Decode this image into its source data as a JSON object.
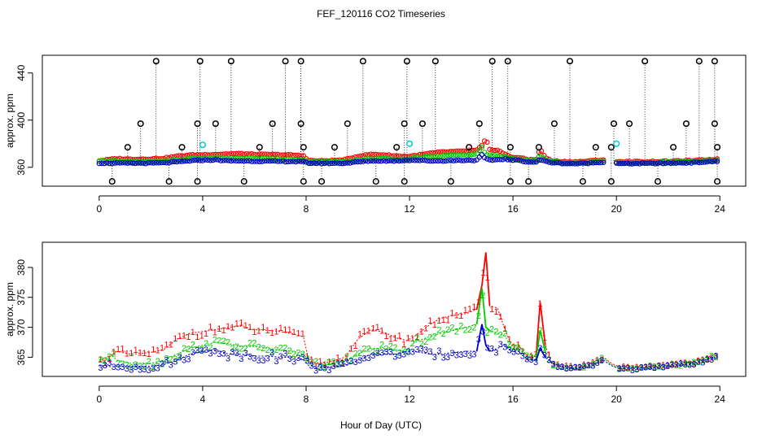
{
  "title": "FEF_120116  CO2 Timeseries",
  "xlabel": "Hour of Day (UTC)",
  "colors": {
    "series1": "#ff0000",
    "series2": "#00cc00",
    "series3": "#0000cc",
    "spike": "#000000",
    "cyan": "#00cccc"
  },
  "chart_data": [
    {
      "type": "scatter",
      "panel": "top",
      "ylabel": "approx. ppm",
      "xlim": [
        -2.2,
        25
      ],
      "ylim": [
        344,
        455
      ],
      "x_ticks": [
        0,
        4,
        8,
        12,
        16,
        20,
        24
      ],
      "y_ticks": [
        360,
        400,
        440
      ],
      "y_tick_labels": [
        "360",
        "400",
        "440"
      ],
      "spikes_high": [
        {
          "x": 2.2,
          "y": 450
        },
        {
          "x": 3.9,
          "y": 450
        },
        {
          "x": 5.1,
          "y": 450
        },
        {
          "x": 7.2,
          "y": 450
        },
        {
          "x": 7.8,
          "y": 450
        },
        {
          "x": 10.2,
          "y": 450
        },
        {
          "x": 11.9,
          "y": 450
        },
        {
          "x": 13.0,
          "y": 450
        },
        {
          "x": 15.2,
          "y": 450
        },
        {
          "x": 15.8,
          "y": 450
        },
        {
          "x": 18.2,
          "y": 450
        },
        {
          "x": 21.1,
          "y": 450
        },
        {
          "x": 23.2,
          "y": 450
        },
        {
          "x": 23.8,
          "y": 450
        }
      ],
      "spikes_mid": [
        {
          "x": 1.6,
          "y": 397
        },
        {
          "x": 3.8,
          "y": 397
        },
        {
          "x": 4.5,
          "y": 397
        },
        {
          "x": 6.7,
          "y": 397
        },
        {
          "x": 7.8,
          "y": 397
        },
        {
          "x": 9.6,
          "y": 397
        },
        {
          "x": 11.8,
          "y": 397
        },
        {
          "x": 12.5,
          "y": 397
        },
        {
          "x": 14.7,
          "y": 397
        },
        {
          "x": 17.6,
          "y": 397
        },
        {
          "x": 19.9,
          "y": 397
        },
        {
          "x": 20.5,
          "y": 397
        },
        {
          "x": 22.7,
          "y": 397
        },
        {
          "x": 23.8,
          "y": 397
        }
      ],
      "spikes_low": [
        {
          "x": 1.1,
          "y": 377
        },
        {
          "x": 3.2,
          "y": 377
        },
        {
          "x": 6.2,
          "y": 377
        },
        {
          "x": 7.9,
          "y": 377
        },
        {
          "x": 9.1,
          "y": 377
        },
        {
          "x": 11.5,
          "y": 377
        },
        {
          "x": 14.3,
          "y": 377
        },
        {
          "x": 15.9,
          "y": 377
        },
        {
          "x": 17.0,
          "y": 377
        },
        {
          "x": 19.2,
          "y": 377
        },
        {
          "x": 19.8,
          "y": 377
        },
        {
          "x": 22.2,
          "y": 377
        },
        {
          "x": 23.9,
          "y": 377
        }
      ],
      "spikes_bottom": [
        {
          "x": 0.5,
          "y": 348
        },
        {
          "x": 2.7,
          "y": 348
        },
        {
          "x": 3.8,
          "y": 348
        },
        {
          "x": 5.6,
          "y": 348
        },
        {
          "x": 7.9,
          "y": 348
        },
        {
          "x": 8.6,
          "y": 348
        },
        {
          "x": 10.7,
          "y": 348
        },
        {
          "x": 11.8,
          "y": 348
        },
        {
          "x": 13.6,
          "y": 348
        },
        {
          "x": 15.9,
          "y": 348
        },
        {
          "x": 16.6,
          "y": 348
        },
        {
          "x": 18.7,
          "y": 348
        },
        {
          "x": 19.8,
          "y": 348
        },
        {
          "x": 21.6,
          "y": 348
        },
        {
          "x": 23.9,
          "y": 348
        }
      ],
      "cyan_points": [
        {
          "x": 4.0,
          "y": 379
        },
        {
          "x": 12.0,
          "y": 380
        },
        {
          "x": 20.0,
          "y": 380
        }
      ]
    },
    {
      "type": "line",
      "panel": "bottom",
      "ylabel": "approx. ppm",
      "xlim": [
        -2.2,
        25
      ],
      "ylim": [
        361.8,
        384.2
      ],
      "x_ticks": [
        0,
        4,
        8,
        12,
        16,
        20,
        24
      ],
      "y_ticks": [
        365,
        370,
        375,
        380
      ],
      "y_tick_labels": [
        "365",
        "370",
        "375",
        "380"
      ],
      "marker_labels": [
        "1",
        "2",
        "3"
      ],
      "series": [
        {
          "name": "1",
          "points": [
            [
              0,
              364.2
            ],
            [
              0.5,
              365.5
            ],
            [
              0.7,
              366
            ],
            [
              1.2,
              365.5
            ],
            [
              2.0,
              365.8
            ],
            [
              2.5,
              366.3
            ],
            [
              3.0,
              368
            ],
            [
              3.5,
              369
            ],
            [
              4.0,
              369.3
            ],
            [
              4.5,
              369.6
            ],
            [
              5.0,
              370
            ],
            [
              5.5,
              370.2
            ],
            [
              6.0,
              369.6
            ],
            [
              6.5,
              369.5
            ],
            [
              7.0,
              369.3
            ],
            [
              7.5,
              368.9
            ],
            [
              7.9,
              368.4
            ],
            [
              8.1,
              364.4
            ],
            [
              8.5,
              364
            ],
            [
              9.0,
              364.3
            ],
            [
              9.5,
              365
            ],
            [
              10.0,
              368
            ],
            [
              10.5,
              369.6
            ],
            [
              11.0,
              369.2
            ],
            [
              11.5,
              368.2
            ],
            [
              11.9,
              367.8
            ],
            [
              12.2,
              368.5
            ],
            [
              12.8,
              370.5
            ],
            [
              13.2,
              371.5
            ],
            [
              13.7,
              372
            ],
            [
              14.2,
              372.3
            ],
            [
              14.6,
              373
            ],
            [
              14.8,
              377
            ],
            [
              14.95,
              382.5
            ],
            [
              15.1,
              373.6
            ],
            [
              15.4,
              373.2
            ],
            [
              15.7,
              369.5
            ],
            [
              15.95,
              367
            ],
            [
              16.2,
              367
            ],
            [
              16.6,
              365
            ],
            [
              16.9,
              365.5
            ],
            [
              17.05,
              374.2
            ],
            [
              17.25,
              367
            ],
            [
              17.5,
              364
            ],
            [
              18.0,
              363.4
            ],
            [
              18.5,
              363.3
            ],
            [
              19.0,
              364
            ],
            [
              19.5,
              365
            ],
            [
              19.8,
              364
            ],
            [
              20.1,
              363.4
            ],
            [
              21.0,
              363.4
            ],
            [
              22.0,
              363.7
            ],
            [
              23.0,
              364.3
            ],
            [
              23.8,
              365.4
            ]
          ]
        },
        {
          "name": "2",
          "points": [
            [
              0,
              364.6
            ],
            [
              0.5,
              365.2
            ],
            [
              0.7,
              364.5
            ],
            [
              1.2,
              364
            ],
            [
              2.0,
              364
            ],
            [
              2.5,
              364.5
            ],
            [
              3.0,
              365.5
            ],
            [
              3.5,
              366.5
            ],
            [
              4.0,
              367
            ],
            [
              4.5,
              367.5
            ],
            [
              5.0,
              367.3
            ],
            [
              5.5,
              366.8
            ],
            [
              6.0,
              366.8
            ],
            [
              6.5,
              366.5
            ],
            [
              7.0,
              366.2
            ],
            [
              7.5,
              366
            ],
            [
              7.9,
              365.5
            ],
            [
              8.1,
              364
            ],
            [
              8.5,
              363.8
            ],
            [
              9.0,
              364
            ],
            [
              9.5,
              364.3
            ],
            [
              10.0,
              365.5
            ],
            [
              10.5,
              366.5
            ],
            [
              11.0,
              366.5
            ],
            [
              11.5,
              366
            ],
            [
              11.9,
              366.2
            ],
            [
              12.2,
              367.5
            ],
            [
              12.8,
              368.5
            ],
            [
              13.2,
              369
            ],
            [
              13.7,
              369.5
            ],
            [
              14.2,
              370
            ],
            [
              14.6,
              370.5
            ],
            [
              14.8,
              376.5
            ],
            [
              14.95,
              370
            ],
            [
              15.1,
              369.5
            ],
            [
              15.4,
              369
            ],
            [
              15.7,
              368.5
            ],
            [
              15.95,
              366.5
            ],
            [
              16.2,
              366.5
            ],
            [
              16.6,
              365
            ],
            [
              16.9,
              365
            ],
            [
              17.05,
              369.5
            ],
            [
              17.25,
              366
            ],
            [
              17.5,
              364
            ],
            [
              18.0,
              363.3
            ],
            [
              18.5,
              363.2
            ],
            [
              19.0,
              363.8
            ],
            [
              19.5,
              364.8
            ],
            [
              19.8,
              363.8
            ],
            [
              20.1,
              363.2
            ],
            [
              21.0,
              363.3
            ],
            [
              22.0,
              363.6
            ],
            [
              23.0,
              364.2
            ],
            [
              23.8,
              365.2
            ]
          ]
        },
        {
          "name": "3",
          "points": [
            [
              0,
              363.6
            ],
            [
              0.5,
              363.4
            ],
            [
              0.7,
              363.5
            ],
            [
              1.2,
              363.5
            ],
            [
              2.0,
              363.5
            ],
            [
              2.5,
              363.8
            ],
            [
              3.0,
              364.5
            ],
            [
              3.5,
              365.5
            ],
            [
              4.0,
              366
            ],
            [
              4.5,
              366.3
            ],
            [
              5.0,
              365.5
            ],
            [
              5.5,
              365.5
            ],
            [
              6.0,
              365.2
            ],
            [
              6.5,
              365.2
            ],
            [
              7.0,
              365
            ],
            [
              7.5,
              365
            ],
            [
              7.9,
              364.6
            ],
            [
              8.1,
              363.6
            ],
            [
              8.5,
              363.4
            ],
            [
              9.0,
              363.4
            ],
            [
              9.5,
              363.5
            ],
            [
              10.0,
              364.5
            ],
            [
              10.5,
              365.5
            ],
            [
              11.0,
              365.5
            ],
            [
              11.5,
              365.5
            ],
            [
              11.9,
              366
            ],
            [
              12.2,
              366
            ],
            [
              12.8,
              365.5
            ],
            [
              13.2,
              365.5
            ],
            [
              13.7,
              365.8
            ],
            [
              14.2,
              366
            ],
            [
              14.6,
              366
            ],
            [
              14.8,
              370.5
            ],
            [
              14.95,
              367
            ],
            [
              15.1,
              366
            ],
            [
              15.4,
              366.5
            ],
            [
              15.7,
              367
            ],
            [
              15.95,
              366
            ],
            [
              16.2,
              366
            ],
            [
              16.6,
              364.5
            ],
            [
              16.9,
              364.5
            ],
            [
              17.05,
              366.5
            ],
            [
              17.25,
              365
            ],
            [
              17.5,
              364
            ],
            [
              18.0,
              363.2
            ],
            [
              18.5,
              363.1
            ],
            [
              19.0,
              363.6
            ],
            [
              19.5,
              364.5
            ],
            [
              19.8,
              363.6
            ],
            [
              20.1,
              363.1
            ],
            [
              21.0,
              363.2
            ],
            [
              22.0,
              363.5
            ],
            [
              23.0,
              364
            ],
            [
              23.8,
              365
            ]
          ]
        }
      ]
    }
  ]
}
